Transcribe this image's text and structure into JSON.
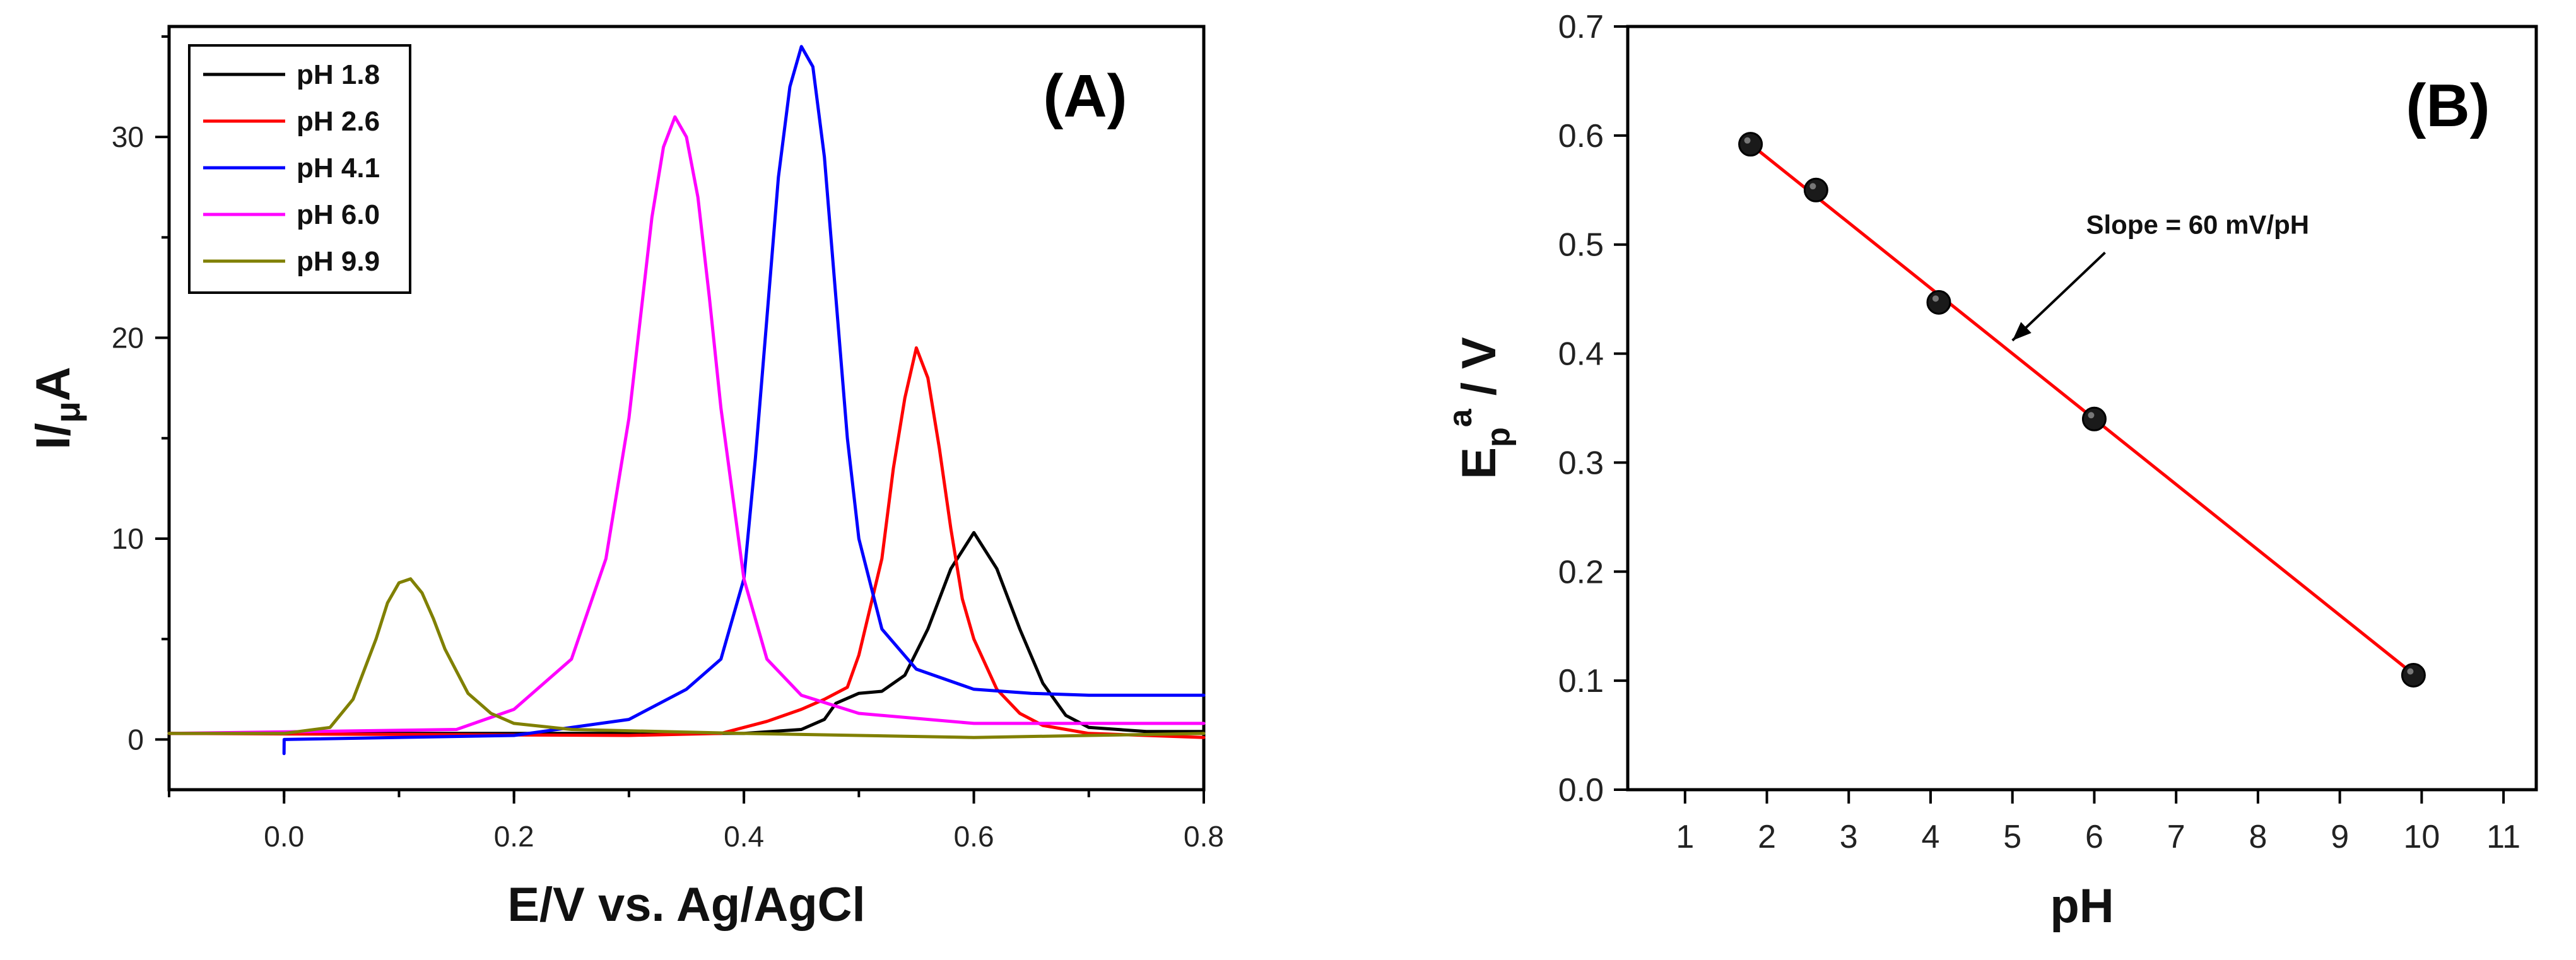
{
  "chart_data": [
    {
      "type": "line",
      "panel_label": "(A)",
      "xlabel": "E/V vs. Ag/AgCl",
      "ylabel_main": "I/",
      "ylabel_mu": "μ",
      "ylabel_unit": "A",
      "xlim": [
        -0.1,
        0.8
      ],
      "ylim": [
        -2.5,
        35.5
      ],
      "xticks": [
        0.0,
        0.2,
        0.4,
        0.6,
        0.8
      ],
      "xtick_labels": [
        "0.0",
        "0.2",
        "0.4",
        "0.6",
        "0.8"
      ],
      "yticks": [
        0,
        10,
        20,
        30
      ],
      "ytick_labels": [
        "0",
        "10",
        "20",
        "30"
      ],
      "legend_position": "top-left",
      "series": [
        {
          "name": "pH 1.8",
          "color": "#000000",
          "x": [
            -0.1,
            0.2,
            0.4,
            0.45,
            0.47,
            0.48,
            0.5,
            0.52,
            0.54,
            0.56,
            0.58,
            0.6,
            0.62,
            0.64,
            0.66,
            0.68,
            0.7,
            0.75,
            0.8
          ],
          "y": [
            0.3,
            0.3,
            0.3,
            0.5,
            1.0,
            1.8,
            2.3,
            2.4,
            3.2,
            5.5,
            8.5,
            10.3,
            8.5,
            5.5,
            2.8,
            1.2,
            0.6,
            0.4,
            0.4
          ]
        },
        {
          "name": "pH 2.6",
          "color": "#ff0000",
          "x": [
            -0.1,
            0.3,
            0.38,
            0.42,
            0.45,
            0.47,
            0.49,
            0.5,
            0.52,
            0.53,
            0.54,
            0.55,
            0.56,
            0.57,
            0.58,
            0.59,
            0.6,
            0.62,
            0.64,
            0.66,
            0.7,
            0.75,
            0.8
          ],
          "y": [
            0.3,
            0.2,
            0.3,
            0.9,
            1.5,
            2.0,
            2.6,
            4.2,
            9.0,
            13.5,
            17.0,
            19.5,
            18.0,
            14.5,
            10.5,
            7.0,
            5.0,
            2.5,
            1.3,
            0.7,
            0.3,
            0.2,
            0.1
          ]
        },
        {
          "name": "pH 4.1",
          "color": "#0000ff",
          "x": [
            0.0,
            0.0001,
            0.2,
            0.3,
            0.35,
            0.38,
            0.4,
            0.41,
            0.42,
            0.43,
            0.44,
            0.45,
            0.46,
            0.47,
            0.48,
            0.49,
            0.5,
            0.52,
            0.55,
            0.6,
            0.65,
            0.7,
            0.8
          ],
          "y": [
            -0.7,
            0.0,
            0.2,
            1.0,
            2.5,
            4.0,
            8.0,
            14.0,
            21.0,
            28.0,
            32.5,
            34.5,
            33.5,
            29.0,
            22.0,
            15.0,
            10.0,
            5.5,
            3.5,
            2.5,
            2.3,
            2.2,
            2.2
          ]
        },
        {
          "name": "pH 6.0",
          "color": "#ff00ff",
          "x": [
            -0.1,
            0.15,
            0.2,
            0.25,
            0.28,
            0.3,
            0.31,
            0.32,
            0.33,
            0.34,
            0.35,
            0.36,
            0.37,
            0.38,
            0.4,
            0.42,
            0.45,
            0.5,
            0.6,
            0.8
          ],
          "y": [
            0.3,
            0.5,
            1.5,
            4.0,
            9.0,
            16.0,
            21.0,
            26.0,
            29.5,
            31.0,
            30.0,
            27.0,
            22.0,
            16.5,
            8.0,
            4.0,
            2.2,
            1.3,
            0.8,
            0.8
          ]
        },
        {
          "name": "pH 9.9",
          "color": "#808000",
          "x": [
            -0.1,
            0.0,
            0.04,
            0.06,
            0.08,
            0.09,
            0.1,
            0.11,
            0.12,
            0.13,
            0.14,
            0.16,
            0.18,
            0.2,
            0.25,
            0.4,
            0.5,
            0.6,
            0.7,
            0.8
          ],
          "y": [
            0.3,
            0.3,
            0.6,
            2.0,
            5.0,
            6.8,
            7.8,
            8.0,
            7.3,
            6.0,
            4.5,
            2.3,
            1.3,
            0.8,
            0.5,
            0.3,
            0.2,
            0.1,
            0.2,
            0.3
          ]
        }
      ]
    },
    {
      "type": "scatter",
      "panel_label": "(B)",
      "xlabel": "pH",
      "ylabel_main": "E",
      "ylabel_sub": "p",
      "ylabel_sup": "a",
      "ylabel_rest": " / V",
      "xlim": [
        0.3,
        11.4
      ],
      "ylim": [
        0.0,
        0.7
      ],
      "xticks": [
        1,
        2,
        3,
        4,
        5,
        6,
        7,
        8,
        9,
        10,
        11
      ],
      "xtick_labels": [
        "1",
        "2",
        "3",
        "4",
        "5",
        "6",
        "7",
        "8",
        "9",
        "10",
        "11"
      ],
      "yticks": [
        0.0,
        0.1,
        0.2,
        0.3,
        0.4,
        0.5,
        0.6,
        0.7
      ],
      "ytick_labels": [
        "0.0",
        "0.1",
        "0.2",
        "0.3",
        "0.4",
        "0.5",
        "0.6",
        "0.7"
      ],
      "points": {
        "x": [
          1.8,
          2.6,
          4.1,
          6.0,
          9.9
        ],
        "y": [
          0.592,
          0.55,
          0.447,
          0.34,
          0.105
        ]
      },
      "fit": {
        "x": [
          1.8,
          9.9
        ],
        "y": [
          0.592,
          0.106
        ],
        "color": "#ff0000"
      },
      "annotation": "Slope = 60 mV/pH",
      "annotation_anchor": {
        "x": 5.0,
        "y": 0.412
      },
      "annotation_text_pos": {
        "x": 5.9,
        "y": 0.51
      }
    }
  ]
}
